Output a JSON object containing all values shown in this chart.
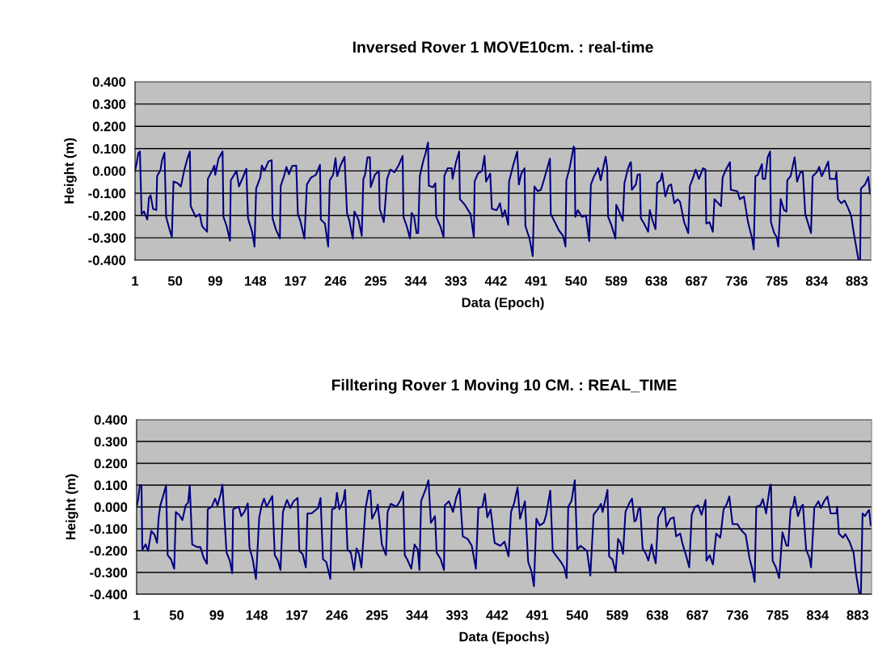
{
  "chart_data": [
    {
      "type": "line",
      "title": "Inversed Rover 1 MOVE10cm. : real-time",
      "xlabel": "Data (Epoch)",
      "ylabel": "Height (m)",
      "grid": "y",
      "legend": false,
      "marker": "none",
      "line_style": "solid",
      "xlim": [
        1,
        900
      ],
      "ylim": [
        -0.4,
        0.4
      ],
      "xticks": [
        1,
        50,
        99,
        148,
        197,
        246,
        295,
        344,
        393,
        442,
        491,
        540,
        589,
        638,
        687,
        736,
        785,
        834,
        883
      ],
      "yticks": [
        {
          "value": 0.4,
          "label": "0.400"
        },
        {
          "value": 0.3,
          "label": "0.300"
        },
        {
          "value": 0.2,
          "label": "0.200"
        },
        {
          "value": 0.1,
          "label": "0.100"
        },
        {
          "value": 0,
          "label": "0.000"
        },
        {
          "value": -0.1,
          "label": "-0.100"
        },
        {
          "value": -0.2,
          "label": "-0.200"
        },
        {
          "value": -0.3,
          "label": "-0.300"
        },
        {
          "value": -0.4,
          "label": "-0.400"
        }
      ],
      "series": [
        {
          "color": "#000080",
          "x": [
            1,
            3,
            5,
            7,
            9,
            12,
            16,
            18,
            20,
            23,
            27,
            28,
            32,
            34,
            37,
            39,
            43,
            46,
            48,
            53,
            57,
            61,
            65,
            68,
            69,
            75,
            80,
            83,
            89,
            90,
            95,
            98,
            99,
            103,
            108,
            109,
            113,
            117,
            118,
            123,
            125,
            128,
            132,
            137,
            139,
            144,
            147,
            149,
            154,
            156,
            159,
            164,
            168,
            169,
            173,
            178,
            179,
            183,
            186,
            189,
            193,
            198,
            200,
            203,
            208,
            211,
            216,
            222,
            227,
            228,
            233,
            237,
            239,
            243,
            246,
            248,
            252,
            257,
            260,
            263,
            267,
            269,
            274,
            278,
            280,
            282,
            285,
            288,
            289,
            294,
            299,
            300,
            305,
            309,
            313,
            318,
            323,
            328,
            329,
            333,
            337,
            339,
            342,
            345,
            347,
            349,
            353,
            356,
            359,
            360,
            365,
            368,
            369,
            374,
            378,
            379,
            383,
            388,
            389,
            393,
            397,
            398,
            404,
            411,
            415,
            416,
            420,
            425,
            428,
            430,
            435,
            437,
            443,
            447,
            450,
            453,
            457,
            458,
            463,
            468,
            470,
            473,
            477,
            478,
            483,
            487,
            489,
            493,
            497,
            501,
            508,
            509,
            514,
            519,
            524,
            527,
            528,
            532,
            537,
            538,
            539,
            542,
            547,
            552,
            556,
            558,
            562,
            567,
            570,
            574,
            576,
            578,
            579,
            583,
            588,
            589,
            592,
            597,
            599,
            603,
            606,
            607,
            608,
            613,
            615,
            618,
            619,
            623,
            628,
            630,
            633,
            637,
            639,
            643,
            645,
            649,
            653,
            656,
            660,
            664,
            667,
            672,
            677,
            679,
            683,
            686,
            690,
            695,
            698,
            699,
            703,
            707,
            709,
            717,
            719,
            723,
            728,
            729,
            737,
            740,
            745,
            750,
            755,
            757,
            759,
            762,
            765,
            767,
            768,
            771,
            774,
            777,
            778,
            782,
            785,
            787,
            790,
            794,
            797,
            798,
            802,
            807,
            810,
            814,
            817,
            820,
            824,
            827,
            829,
            834,
            837,
            840,
            844,
            848,
            850,
            857,
            858,
            860,
            864,
            868,
            872,
            876,
            879,
            885,
            887,
            888,
            893,
            897,
            899,
            900
          ],
          "values": [
            0.0,
            0.036,
            0.079,
            0.087,
            -0.194,
            -0.182,
            -0.218,
            -0.121,
            -0.109,
            -0.17,
            -0.176,
            -0.022,
            0.002,
            0.048,
            0.081,
            -0.206,
            -0.261,
            -0.297,
            -0.048,
            -0.055,
            -0.07,
            0.0,
            0.055,
            0.087,
            -0.158,
            -0.206,
            -0.194,
            -0.248,
            -0.273,
            -0.036,
            0.0,
            0.024,
            -0.018,
            0.055,
            0.087,
            -0.206,
            -0.248,
            -0.313,
            -0.042,
            -0.012,
            0.0,
            -0.07,
            -0.036,
            0.01,
            -0.212,
            -0.273,
            -0.339,
            -0.079,
            -0.03,
            0.024,
            0.0,
            0.042,
            0.048,
            -0.212,
            -0.261,
            -0.303,
            -0.067,
            -0.024,
            0.018,
            -0.015,
            0.022,
            0.024,
            -0.194,
            -0.224,
            -0.303,
            -0.061,
            -0.03,
            -0.018,
            0.027,
            -0.218,
            -0.236,
            -0.339,
            -0.042,
            -0.018,
            0.057,
            -0.024,
            0.024,
            0.063,
            -0.188,
            -0.224,
            -0.303,
            -0.182,
            -0.218,
            -0.291,
            -0.036,
            -0.018,
            0.061,
            0.061,
            -0.073,
            -0.018,
            0.0,
            -0.17,
            -0.23,
            -0.036,
            0.006,
            -0.006,
            0.024,
            0.067,
            -0.206,
            -0.248,
            -0.303,
            -0.188,
            -0.206,
            -0.279,
            -0.279,
            -0.022,
            0.042,
            0.079,
            0.127,
            -0.067,
            -0.073,
            -0.055,
            -0.206,
            -0.248,
            -0.297,
            -0.022,
            0.012,
            0.012,
            -0.036,
            0.036,
            0.087,
            -0.127,
            -0.152,
            -0.194,
            -0.297,
            -0.046,
            -0.012,
            0.0,
            0.067,
            -0.048,
            -0.012,
            -0.17,
            -0.176,
            -0.145,
            -0.206,
            -0.176,
            -0.242,
            -0.048,
            0.024,
            0.087,
            -0.061,
            -0.012,
            0.012,
            -0.248,
            -0.303,
            -0.382,
            -0.07,
            -0.091,
            -0.085,
            -0.036,
            0.055,
            -0.194,
            -0.23,
            -0.267,
            -0.291,
            -0.339,
            -0.042,
            0.012,
            0.109,
            0.103,
            -0.206,
            -0.176,
            -0.206,
            -0.2,
            -0.315,
            -0.061,
            -0.024,
            0.012,
            -0.042,
            0.03,
            0.064,
            0.012,
            -0.206,
            -0.242,
            -0.303,
            -0.152,
            -0.176,
            -0.224,
            -0.055,
            0.006,
            0.036,
            0.039,
            -0.085,
            -0.061,
            -0.018,
            -0.015,
            -0.212,
            -0.236,
            -0.273,
            -0.176,
            -0.218,
            -0.261,
            -0.055,
            -0.042,
            -0.01,
            -0.115,
            -0.067,
            -0.061,
            -0.145,
            -0.127,
            -0.139,
            -0.23,
            -0.279,
            -0.067,
            -0.03,
            0.006,
            -0.036,
            0.012,
            0.006,
            -0.236,
            -0.23,
            -0.273,
            -0.127,
            -0.158,
            -0.03,
            0.006,
            0.039,
            -0.085,
            -0.091,
            -0.127,
            -0.115,
            -0.23,
            -0.303,
            -0.352,
            -0.024,
            -0.018,
            0.012,
            0.03,
            -0.036,
            -0.036,
            0.061,
            0.087,
            -0.23,
            -0.279,
            -0.297,
            -0.339,
            -0.127,
            -0.176,
            -0.182,
            -0.042,
            -0.024,
            0.061,
            -0.048,
            -0.006,
            -0.006,
            -0.194,
            -0.242,
            -0.279,
            -0.024,
            -0.006,
            0.018,
            -0.024,
            0.006,
            0.042,
            -0.036,
            -0.036,
            -0.006,
            -0.127,
            -0.145,
            -0.133,
            -0.164,
            -0.2,
            -0.273,
            -0.4,
            -0.4,
            -0.079,
            -0.061,
            -0.027,
            -0.103,
            -0.085
          ]
        }
      ]
    },
    {
      "type": "line",
      "title": "Filltering Rover 1 Moving 10 CM. : REAL_TIME",
      "xlabel": "Data (Epochs)",
      "ylabel": "Height (m)",
      "grid": "y",
      "legend": false,
      "marker": "none",
      "line_style": "solid",
      "xlim": [
        1,
        900
      ],
      "ylim": [
        -0.4,
        0.4
      ],
      "xticks": [
        1,
        50,
        99,
        148,
        197,
        246,
        295,
        344,
        393,
        442,
        491,
        540,
        589,
        638,
        687,
        736,
        785,
        834,
        883
      ],
      "yticks": [
        {
          "value": 0.4,
          "label": "0.400"
        },
        {
          "value": 0.3,
          "label": "0.300"
        },
        {
          "value": 0.2,
          "label": "0.200"
        },
        {
          "value": 0.1,
          "label": "0.100"
        },
        {
          "value": 0,
          "label": "0.000"
        },
        {
          "value": -0.1,
          "label": "-0.100"
        },
        {
          "value": -0.2,
          "label": "-0.200"
        },
        {
          "value": -0.3,
          "label": "-0.300"
        },
        {
          "value": -0.4,
          "label": "-0.400"
        }
      ],
      "series": [
        {
          "color": "#000080",
          "x": [
            1,
            3,
            5,
            7,
            8,
            12,
            15,
            19,
            23,
            26,
            28,
            30,
            33,
            37,
            39,
            43,
            47,
            49,
            53,
            57,
            61,
            64,
            66,
            69,
            75,
            79,
            83,
            87,
            88,
            93,
            97,
            100,
            104,
            106,
            111,
            115,
            118,
            119,
            122,
            126,
            129,
            133,
            137,
            139,
            143,
            147,
            151,
            154,
            157,
            160,
            167,
            170,
            174,
            177,
            180,
            185,
            189,
            193,
            198,
            200,
            204,
            208,
            210,
            215,
            220,
            223,
            226,
            229,
            233,
            238,
            240,
            244,
            246,
            249,
            254,
            256,
            259,
            263,
            267,
            270,
            273,
            276,
            281,
            285,
            287,
            289,
            294,
            296,
            299,
            301,
            306,
            308,
            312,
            319,
            324,
            327,
            329,
            332,
            337,
            341,
            345,
            347,
            349,
            354,
            358,
            361,
            366,
            368,
            373,
            377,
            378,
            383,
            388,
            392,
            396,
            400,
            406,
            411,
            416,
            419,
            424,
            427,
            430,
            434,
            439,
            446,
            451,
            456,
            459,
            463,
            467,
            470,
            476,
            480,
            484,
            487,
            490,
            494,
            499,
            502,
            507,
            510,
            515,
            520,
            524,
            527,
            529,
            533,
            537,
            540,
            544,
            550,
            552,
            556,
            560,
            565,
            569,
            571,
            575,
            577,
            579,
            583,
            587,
            590,
            593,
            596,
            599,
            604,
            607,
            610,
            612,
            615,
            617,
            620,
            624,
            627,
            631,
            633,
            636,
            639,
            645,
            647,
            649,
            654,
            658,
            661,
            666,
            669,
            673,
            677,
            680,
            684,
            688,
            692,
            697,
            698,
            702,
            706,
            710,
            715,
            719,
            723,
            726,
            730,
            736,
            740,
            746,
            751,
            754,
            757,
            759,
            764,
            767,
            768,
            771,
            774,
            776,
            777,
            779,
            783,
            787,
            791,
            796,
            798,
            801,
            804,
            806,
            810,
            814,
            816,
            820,
            824,
            826,
            830,
            835,
            838,
            842,
            846,
            850,
            857,
            858,
            860,
            865,
            868,
            873,
            878,
            881,
            885,
            887,
            889,
            892,
            895,
            897,
            899,
            900
          ],
          "values": [
            0.0,
            0.038,
            0.1,
            0.1,
            -0.196,
            -0.172,
            -0.202,
            -0.11,
            -0.128,
            -0.165,
            -0.048,
            0.007,
            0.044,
            0.098,
            -0.221,
            -0.24,
            -0.283,
            -0.023,
            -0.036,
            -0.06,
            0.007,
            0.02,
            0.098,
            -0.172,
            -0.184,
            -0.184,
            -0.233,
            -0.26,
            -0.011,
            0.001,
            0.038,
            0.007,
            0.062,
            0.102,
            -0.209,
            -0.246,
            -0.304,
            -0.011,
            -0.005,
            0.001,
            -0.042,
            -0.021,
            0.016,
            -0.184,
            -0.24,
            -0.33,
            -0.048,
            0.007,
            0.038,
            0.001,
            0.05,
            -0.221,
            -0.246,
            -0.289,
            -0.023,
            0.032,
            -0.005,
            0.026,
            0.041,
            -0.202,
            -0.215,
            -0.277,
            -0.03,
            -0.03,
            -0.014,
            -0.005,
            0.041,
            -0.24,
            -0.252,
            -0.33,
            -0.011,
            -0.005,
            0.065,
            -0.011,
            0.032,
            0.078,
            -0.196,
            -0.209,
            -0.289,
            -0.19,
            -0.215,
            -0.277,
            -0.005,
            0.075,
            0.075,
            -0.054,
            -0.017,
            0.011,
            -0.098,
            -0.172,
            -0.221,
            -0.023,
            0.014,
            0.001,
            0.032,
            0.069,
            -0.221,
            -0.24,
            -0.283,
            -0.172,
            -0.196,
            -0.289,
            0.026,
            0.075,
            0.122,
            -0.073,
            -0.042,
            -0.209,
            -0.24,
            -0.289,
            0.007,
            0.026,
            -0.023,
            0.044,
            0.085,
            -0.135,
            -0.147,
            -0.178,
            -0.283,
            -0.005,
            0.001,
            0.06,
            -0.048,
            -0.011,
            -0.165,
            -0.178,
            -0.159,
            -0.227,
            -0.023,
            0.02,
            0.09,
            -0.054,
            0.026,
            -0.252,
            -0.295,
            -0.363,
            -0.054,
            -0.085,
            -0.073,
            -0.036,
            0.075,
            -0.202,
            -0.227,
            -0.252,
            -0.277,
            -0.326,
            0.001,
            0.028,
            0.122,
            -0.196,
            -0.178,
            -0.196,
            -0.202,
            -0.314,
            -0.036,
            -0.011,
            0.014,
            -0.023,
            0.044,
            0.078,
            -0.227,
            -0.24,
            -0.298,
            -0.147,
            -0.165,
            -0.215,
            -0.023,
            0.02,
            0.038,
            -0.067,
            -0.06,
            -0.009,
            -0.005,
            -0.19,
            -0.215,
            -0.246,
            -0.172,
            -0.215,
            -0.258,
            -0.048,
            -0.005,
            -0.005,
            -0.091,
            -0.054,
            -0.048,
            -0.135,
            -0.122,
            -0.172,
            -0.221,
            -0.277,
            -0.036,
            0.001,
            0.007,
            -0.036,
            0.032,
            -0.246,
            -0.221,
            -0.264,
            -0.122,
            -0.141,
            -0.011,
            0.014,
            0.048,
            -0.079,
            -0.079,
            -0.104,
            -0.128,
            -0.24,
            -0.283,
            -0.344,
            0.001,
            0.007,
            0.036,
            0.02,
            -0.03,
            0.05,
            0.102,
            0.102,
            -0.246,
            -0.277,
            -0.326,
            -0.116,
            -0.178,
            -0.178,
            -0.011,
            0.001,
            0.047,
            -0.042,
            0.001,
            0.011,
            -0.196,
            -0.233,
            -0.277,
            -0.005,
            0.026,
            -0.005,
            0.026,
            0.048,
            -0.03,
            -0.03,
            0.001,
            -0.122,
            -0.141,
            -0.125,
            -0.159,
            -0.209,
            -0.307,
            -0.396,
            -0.396,
            -0.03,
            -0.042,
            -0.023,
            -0.014,
            -0.085,
            -0.073
          ]
        }
      ]
    }
  ]
}
